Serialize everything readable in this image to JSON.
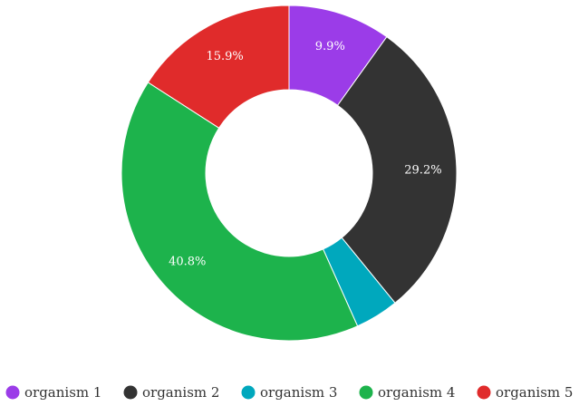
{
  "chart_data": {
    "type": "pie",
    "donut": true,
    "title": "",
    "categories": [
      "organism 1",
      "organism 2",
      "organism 3",
      "organism 4",
      "organism 5"
    ],
    "values": [
      9.9,
      29.2,
      4.2,
      40.8,
      15.9
    ],
    "labels": [
      "9.9%",
      "29.2%",
      "",
      "40.8%",
      "15.9%"
    ],
    "colors": [
      "#9b3ce8",
      "#333333",
      "#00a8bd",
      "#1db34c",
      "#e02b2b"
    ],
    "legend_position": "bottom"
  }
}
